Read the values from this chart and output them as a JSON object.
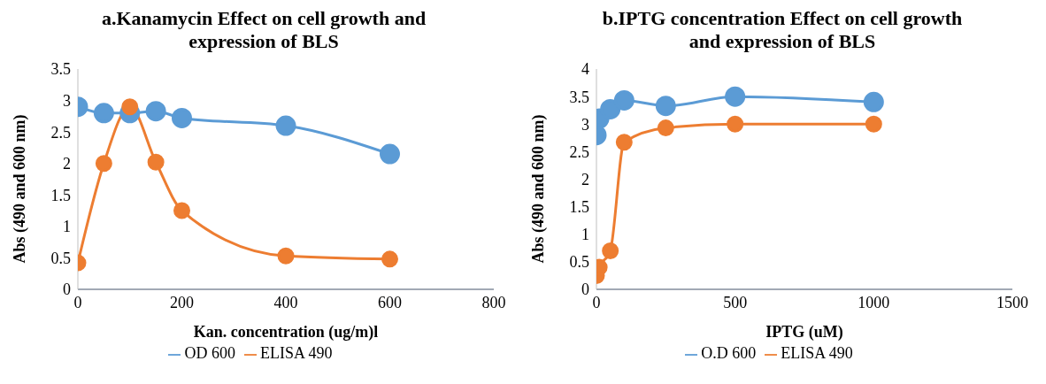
{
  "chart_data": [
    {
      "type": "line",
      "title": "a.Kanamycin  Effect on cell growth and expression of BLS",
      "xlabel": "Kan. concentration (ug/m)l",
      "ylabel": "Abs (490 and 600 nm)",
      "x": [
        0,
        50,
        100,
        150,
        200,
        400,
        600
      ],
      "series": [
        {
          "name": "OD 600",
          "color": "#5b9bd5",
          "values": [
            2.9,
            2.8,
            2.8,
            2.83,
            2.72,
            2.6,
            2.15
          ]
        },
        {
          "name": "ELISA 490",
          "color": "#ed7d31",
          "values": [
            0.42,
            2.0,
            2.9,
            2.02,
            1.25,
            0.53,
            0.48
          ]
        }
      ],
      "xlim": [
        0,
        800
      ],
      "xticks": [
        0,
        200,
        400,
        600,
        800
      ],
      "ylim": [
        0,
        3.5
      ],
      "yticks": [
        0,
        0.5,
        1,
        1.5,
        2,
        2.5,
        3,
        3.5
      ],
      "grid": false,
      "legend": "bottom",
      "marker": "circle"
    },
    {
      "type": "line",
      "title": "b.IPTG concentration Effect on cell growth and expression of BLS",
      "xlabel": "IPTG (uM)",
      "ylabel": "Abs (490 and 600 nm)",
      "x": [
        0,
        10,
        50,
        100,
        250,
        500,
        1000
      ],
      "series": [
        {
          "name": "O.D 600",
          "color": "#5b9bd5",
          "values": [
            2.8,
            3.1,
            3.27,
            3.43,
            3.33,
            3.5,
            3.4
          ]
        },
        {
          "name": "ELISA 490",
          "color": "#ed7d31",
          "values": [
            0.25,
            0.4,
            0.7,
            2.67,
            2.93,
            3.0,
            3.0
          ]
        }
      ],
      "xlim": [
        0,
        1500
      ],
      "xticks": [
        0,
        500,
        1000,
        1500
      ],
      "ylim": [
        0,
        4
      ],
      "yticks": [
        0,
        0.5,
        1,
        1.5,
        2,
        2.5,
        3,
        3.5,
        4
      ],
      "grid": false,
      "legend": "bottom",
      "marker": "circle"
    }
  ]
}
